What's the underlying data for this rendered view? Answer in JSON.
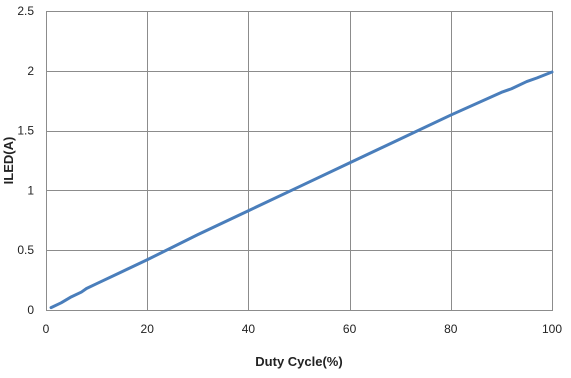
{
  "chart_data": {
    "type": "line",
    "xlabel": "Duty Cycle(%)",
    "ylabel": "ILED(A)",
    "xlim": [
      0,
      100
    ],
    "ylim": [
      0,
      2.5
    ],
    "x_ticks": [
      0,
      20,
      40,
      60,
      80,
      100
    ],
    "y_ticks": [
      0,
      0.5,
      1,
      1.5,
      2,
      2.5
    ],
    "x_tick_labels": [
      "0",
      "20",
      "40",
      "60",
      "80",
      "100"
    ],
    "y_tick_labels": [
      "0",
      "0.5",
      "1",
      "1.5",
      "2",
      "2.5"
    ],
    "grid": true,
    "legend": "none",
    "series": [
      {
        "color": "#4a7ebb",
        "x": [
          1,
          3,
          5,
          7,
          8,
          10,
          15,
          20,
          30,
          40,
          50,
          60,
          70,
          80,
          90,
          92,
          95,
          97,
          100
        ],
        "y": [
          0.02,
          0.06,
          0.11,
          0.15,
          0.18,
          0.22,
          0.32,
          0.42,
          0.63,
          0.83,
          1.03,
          1.23,
          1.43,
          1.63,
          1.82,
          1.85,
          1.91,
          1.94,
          1.99
        ]
      }
    ]
  }
}
